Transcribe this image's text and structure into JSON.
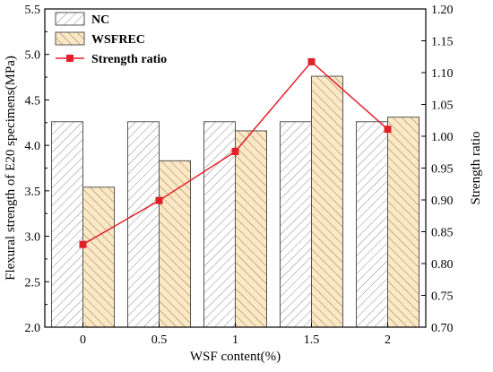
{
  "chart_data": {
    "type": "bar",
    "categories": [
      "0",
      "0.5",
      "1",
      "1.5",
      "2"
    ],
    "xlabel": "WSF content(%)",
    "ylabel": "Flexural strength of E20 specimens(MPa)",
    "ylabel_right": "Strength ratio",
    "ylim": [
      2.0,
      5.5
    ],
    "ylim_right": [
      0.7,
      1.2
    ],
    "yticks": [
      "2.0",
      "2.5",
      "3.0",
      "3.5",
      "4.0",
      "4.5",
      "5.0",
      "5.5"
    ],
    "yticks_right": [
      "0.70",
      "0.75",
      "0.80",
      "0.85",
      "0.90",
      "0.95",
      "1.00",
      "1.05",
      "1.10",
      "1.15",
      "1.20"
    ],
    "series": [
      {
        "name": "NC",
        "type": "bar",
        "axis": "left",
        "fill": "#ffffff",
        "hatch": "//",
        "values": [
          4.26,
          4.26,
          4.26,
          4.26,
          4.26
        ]
      },
      {
        "name": "WSFREC",
        "type": "bar",
        "axis": "left",
        "fill": "#fce8c4",
        "hatch": "\\\\",
        "values": [
          3.54,
          3.83,
          4.16,
          4.76,
          4.31
        ]
      },
      {
        "name": "Strength ratio",
        "type": "line",
        "axis": "right",
        "color": "#e3202a",
        "marker": "square",
        "values": [
          0.83,
          0.899,
          0.976,
          1.117,
          1.011
        ]
      }
    ],
    "legend_position": "top-left",
    "grid": false
  }
}
